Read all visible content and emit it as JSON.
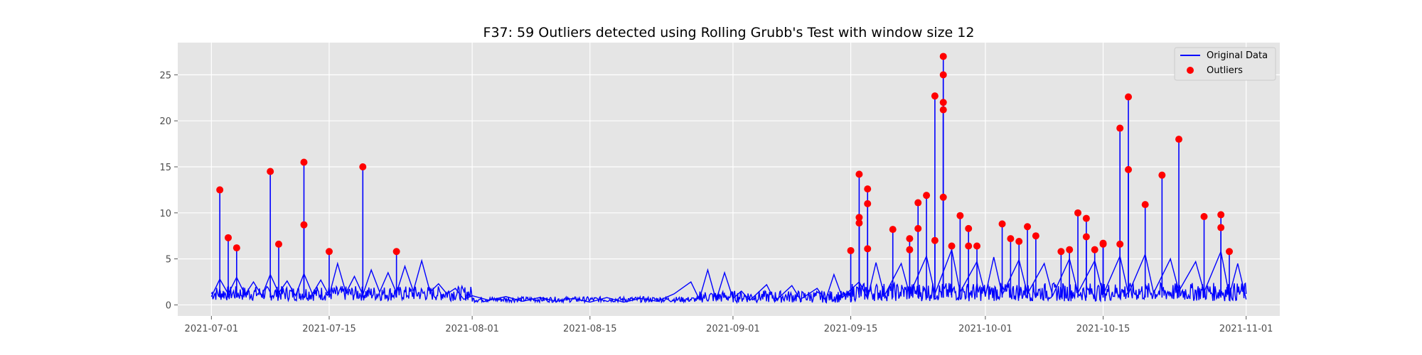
{
  "chart_data": {
    "type": "line",
    "title": "F37: 59 Outliers detected using Rolling Grubb's Test with window size 12",
    "xlabel": "",
    "ylabel": "",
    "x_range": [
      "2021-06-27",
      "2021-11-05"
    ],
    "ylim": [
      -1.2,
      28.5
    ],
    "grid": true,
    "legend_placement": "top-right",
    "x_ticks": [
      {
        "date": "2021-07-01",
        "label": "2021-07-01"
      },
      {
        "date": "2021-07-15",
        "label": "2021-07-15"
      },
      {
        "date": "2021-08-01",
        "label": "2021-08-01"
      },
      {
        "date": "2021-08-15",
        "label": "2021-08-15"
      },
      {
        "date": "2021-09-01",
        "label": "2021-09-01"
      },
      {
        "date": "2021-09-15",
        "label": "2021-09-15"
      },
      {
        "date": "2021-10-01",
        "label": "2021-10-01"
      },
      {
        "date": "2021-10-15",
        "label": "2021-10-15"
      },
      {
        "date": "2021-11-01",
        "label": "2021-11-01"
      }
    ],
    "y_ticks": [
      {
        "value": 0,
        "label": "0"
      },
      {
        "value": 5,
        "label": "5"
      },
      {
        "value": 10,
        "label": "10"
      },
      {
        "value": 15,
        "label": "15"
      },
      {
        "value": 20,
        "label": "20"
      },
      {
        "value": 25,
        "label": "25"
      }
    ],
    "series": [
      {
        "name": "Original Data",
        "kind": "line",
        "color": "#0000ff",
        "x_start": "2021-07-01",
        "x_end": "2021-11-01",
        "points": [
          [
            "2021-07-01",
            0.9
          ],
          [
            "2021-07-02",
            2.8
          ],
          [
            "2021-07-03",
            1.2
          ],
          [
            "2021-07-04",
            3.0
          ],
          [
            "2021-07-05",
            1.1
          ],
          [
            "2021-07-06",
            2.5
          ],
          [
            "2021-07-07",
            1.0
          ],
          [
            "2021-07-08",
            3.3
          ],
          [
            "2021-07-09",
            1.3
          ],
          [
            "2021-07-10",
            2.6
          ],
          [
            "2021-07-11",
            1.0
          ],
          [
            "2021-07-12",
            3.4
          ],
          [
            "2021-07-13",
            1.2
          ],
          [
            "2021-07-14",
            2.7
          ],
          [
            "2021-07-15",
            1.0
          ],
          [
            "2021-07-16",
            4.5
          ],
          [
            "2021-07-17",
            1.3
          ],
          [
            "2021-07-18",
            3.1
          ],
          [
            "2021-07-19",
            1.1
          ],
          [
            "2021-07-20",
            3.8
          ],
          [
            "2021-07-21",
            1.4
          ],
          [
            "2021-07-22",
            3.5
          ],
          [
            "2021-07-23",
            1.3
          ],
          [
            "2021-07-24",
            4.2
          ],
          [
            "2021-07-25",
            1.5
          ],
          [
            "2021-07-26",
            4.8
          ],
          [
            "2021-07-27",
            1.4
          ],
          [
            "2021-07-28",
            2.3
          ],
          [
            "2021-07-29",
            1.2
          ],
          [
            "2021-07-30",
            1.8
          ],
          [
            "2021-07-31",
            0.6
          ],
          [
            "2021-08-01",
            1.0
          ],
          [
            "2021-08-03",
            0.5
          ],
          [
            "2021-08-05",
            0.9
          ],
          [
            "2021-08-07",
            0.4
          ],
          [
            "2021-08-09",
            0.8
          ],
          [
            "2021-08-11",
            0.4
          ],
          [
            "2021-08-13",
            0.7
          ],
          [
            "2021-08-15",
            0.3
          ],
          [
            "2021-08-17",
            0.8
          ],
          [
            "2021-08-19",
            0.3
          ],
          [
            "2021-08-21",
            0.7
          ],
          [
            "2021-08-23",
            0.4
          ],
          [
            "2021-08-25",
            1.2
          ],
          [
            "2021-08-27",
            2.5
          ],
          [
            "2021-08-28",
            0.6
          ],
          [
            "2021-08-29",
            3.8
          ],
          [
            "2021-08-30",
            0.5
          ],
          [
            "2021-08-31",
            3.5
          ],
          [
            "2021-09-01",
            0.7
          ],
          [
            "2021-09-02",
            1.5
          ],
          [
            "2021-09-03",
            0.5
          ],
          [
            "2021-09-05",
            2.2
          ],
          [
            "2021-09-06",
            0.4
          ],
          [
            "2021-09-08",
            2.1
          ],
          [
            "2021-09-09",
            0.6
          ],
          [
            "2021-09-11",
            1.8
          ],
          [
            "2021-09-12",
            0.5
          ],
          [
            "2021-09-13",
            3.3
          ],
          [
            "2021-09-14",
            0.8
          ],
          [
            "2021-09-16",
            2.5
          ],
          [
            "2021-09-17",
            0.7
          ],
          [
            "2021-09-18",
            4.6
          ],
          [
            "2021-09-19",
            1.0
          ],
          [
            "2021-09-21",
            4.5
          ],
          [
            "2021-09-22",
            1.1
          ],
          [
            "2021-09-24",
            5.3
          ],
          [
            "2021-09-25",
            1.2
          ],
          [
            "2021-09-27",
            6.0
          ],
          [
            "2021-09-28",
            1.4
          ],
          [
            "2021-09-30",
            4.7
          ],
          [
            "2021-10-01",
            1.0
          ],
          [
            "2021-10-02",
            5.2
          ],
          [
            "2021-10-03",
            1.1
          ],
          [
            "2021-10-05",
            4.9
          ],
          [
            "2021-10-06",
            1.2
          ],
          [
            "2021-10-08",
            4.5
          ],
          [
            "2021-10-09",
            1.0
          ],
          [
            "2021-10-11",
            5.0
          ],
          [
            "2021-10-12",
            1.3
          ],
          [
            "2021-10-14",
            4.8
          ],
          [
            "2021-10-15",
            1.1
          ],
          [
            "2021-10-17",
            5.3
          ],
          [
            "2021-10-18",
            1.2
          ],
          [
            "2021-10-20",
            5.5
          ],
          [
            "2021-10-21",
            1.3
          ],
          [
            "2021-10-23",
            5.0
          ],
          [
            "2021-10-24",
            1.5
          ],
          [
            "2021-10-26",
            4.7
          ],
          [
            "2021-10-27",
            1.4
          ],
          [
            "2021-10-29",
            5.8
          ],
          [
            "2021-10-30",
            1.0
          ],
          [
            "2021-10-31",
            4.5
          ],
          [
            "2021-11-01",
            0.6
          ]
        ]
      },
      {
        "name": "Outliers",
        "kind": "scatter",
        "color": "#ff0000",
        "points": [
          [
            "2021-07-02",
            12.5
          ],
          [
            "2021-07-03",
            7.3
          ],
          [
            "2021-07-04",
            6.2
          ],
          [
            "2021-07-08",
            14.5
          ],
          [
            "2021-07-09",
            6.6
          ],
          [
            "2021-07-12",
            15.5
          ],
          [
            "2021-07-12",
            8.7
          ],
          [
            "2021-07-15",
            5.8
          ],
          [
            "2021-07-19",
            15.0
          ],
          [
            "2021-07-23",
            5.8
          ],
          [
            "2021-09-15",
            5.9
          ],
          [
            "2021-09-16",
            14.2
          ],
          [
            "2021-09-16",
            9.5
          ],
          [
            "2021-09-16",
            8.9
          ],
          [
            "2021-09-17",
            11.0
          ],
          [
            "2021-09-17",
            12.6
          ],
          [
            "2021-09-17",
            6.1
          ],
          [
            "2021-09-20",
            8.2
          ],
          [
            "2021-09-22",
            6.0
          ],
          [
            "2021-09-22",
            7.2
          ],
          [
            "2021-09-23",
            8.3
          ],
          [
            "2021-09-23",
            11.1
          ],
          [
            "2021-09-24",
            11.9
          ],
          [
            "2021-09-25",
            7.0
          ],
          [
            "2021-09-25",
            22.7
          ],
          [
            "2021-09-26",
            25.0
          ],
          [
            "2021-09-26",
            11.7
          ],
          [
            "2021-09-26",
            27.0
          ],
          [
            "2021-09-26",
            22.0
          ],
          [
            "2021-09-26",
            21.2
          ],
          [
            "2021-09-27",
            6.4
          ],
          [
            "2021-09-28",
            9.7
          ],
          [
            "2021-09-29",
            8.3
          ],
          [
            "2021-09-29",
            6.4
          ],
          [
            "2021-09-30",
            6.4
          ],
          [
            "2021-10-03",
            8.8
          ],
          [
            "2021-10-04",
            7.2
          ],
          [
            "2021-10-05",
            6.9
          ],
          [
            "2021-10-06",
            8.5
          ],
          [
            "2021-10-07",
            7.5
          ],
          [
            "2021-10-10",
            5.8
          ],
          [
            "2021-10-11",
            6.0
          ],
          [
            "2021-10-12",
            10.0
          ],
          [
            "2021-10-13",
            9.4
          ],
          [
            "2021-10-13",
            7.4
          ],
          [
            "2021-10-14",
            6.0
          ],
          [
            "2021-10-15",
            6.6
          ],
          [
            "2021-10-15",
            6.7
          ],
          [
            "2021-10-17",
            19.2
          ],
          [
            "2021-10-17",
            6.6
          ],
          [
            "2021-10-18",
            14.7
          ],
          [
            "2021-10-18",
            22.6
          ],
          [
            "2021-10-20",
            10.9
          ],
          [
            "2021-10-22",
            14.1
          ],
          [
            "2021-10-24",
            18.0
          ],
          [
            "2021-10-27",
            9.6
          ],
          [
            "2021-10-29",
            9.8
          ],
          [
            "2021-10-29",
            8.4
          ],
          [
            "2021-10-30",
            5.8
          ]
        ]
      }
    ]
  }
}
